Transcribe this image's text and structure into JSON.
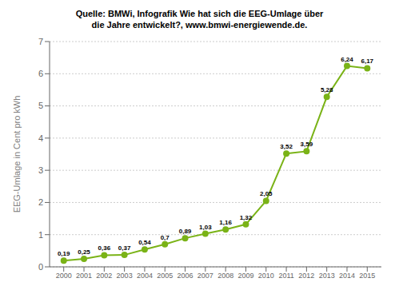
{
  "chart_data": {
    "type": "line",
    "annotation": [
      "Quelle: BMWi, Infografik Wie hat sich die EEG-Umlage über",
      "die Jahre entwickelt?, www.bmwi-energiewende.de."
    ],
    "ylabel": "EEG-Umlage in Cent pro kWh",
    "x": [
      2000,
      2001,
      2002,
      2003,
      2004,
      2005,
      2006,
      2007,
      2008,
      2009,
      2010,
      2011,
      2012,
      2013,
      2014,
      2015
    ],
    "values": [
      0.19,
      0.25,
      0.36,
      0.37,
      0.54,
      0.7,
      0.89,
      1.03,
      1.16,
      1.32,
      2.05,
      3.52,
      3.59,
      5.28,
      6.24,
      6.17
    ],
    "value_labels": [
      "0,19",
      "0,25",
      "0,36",
      "0,37",
      "0,54",
      "0,7",
      "0,89",
      "1,03",
      "1,16",
      "1,32",
      "2,05",
      "3,52",
      "3,59",
      "5,28",
      "6,24",
      "6,17"
    ],
    "data_labels": true,
    "color": "#7ab317",
    "marker": "circle",
    "xlim": [
      1999.3,
      2015.7
    ],
    "xticks": [
      2000,
      2001,
      2002,
      2003,
      2004,
      2005,
      2006,
      2007,
      2008,
      2009,
      2010,
      2011,
      2012,
      2013,
      2014,
      2015
    ],
    "ylim": [
      0,
      7
    ],
    "yticks": [
      0,
      1,
      2,
      3,
      4,
      5,
      6,
      7
    ],
    "grid": true
  }
}
